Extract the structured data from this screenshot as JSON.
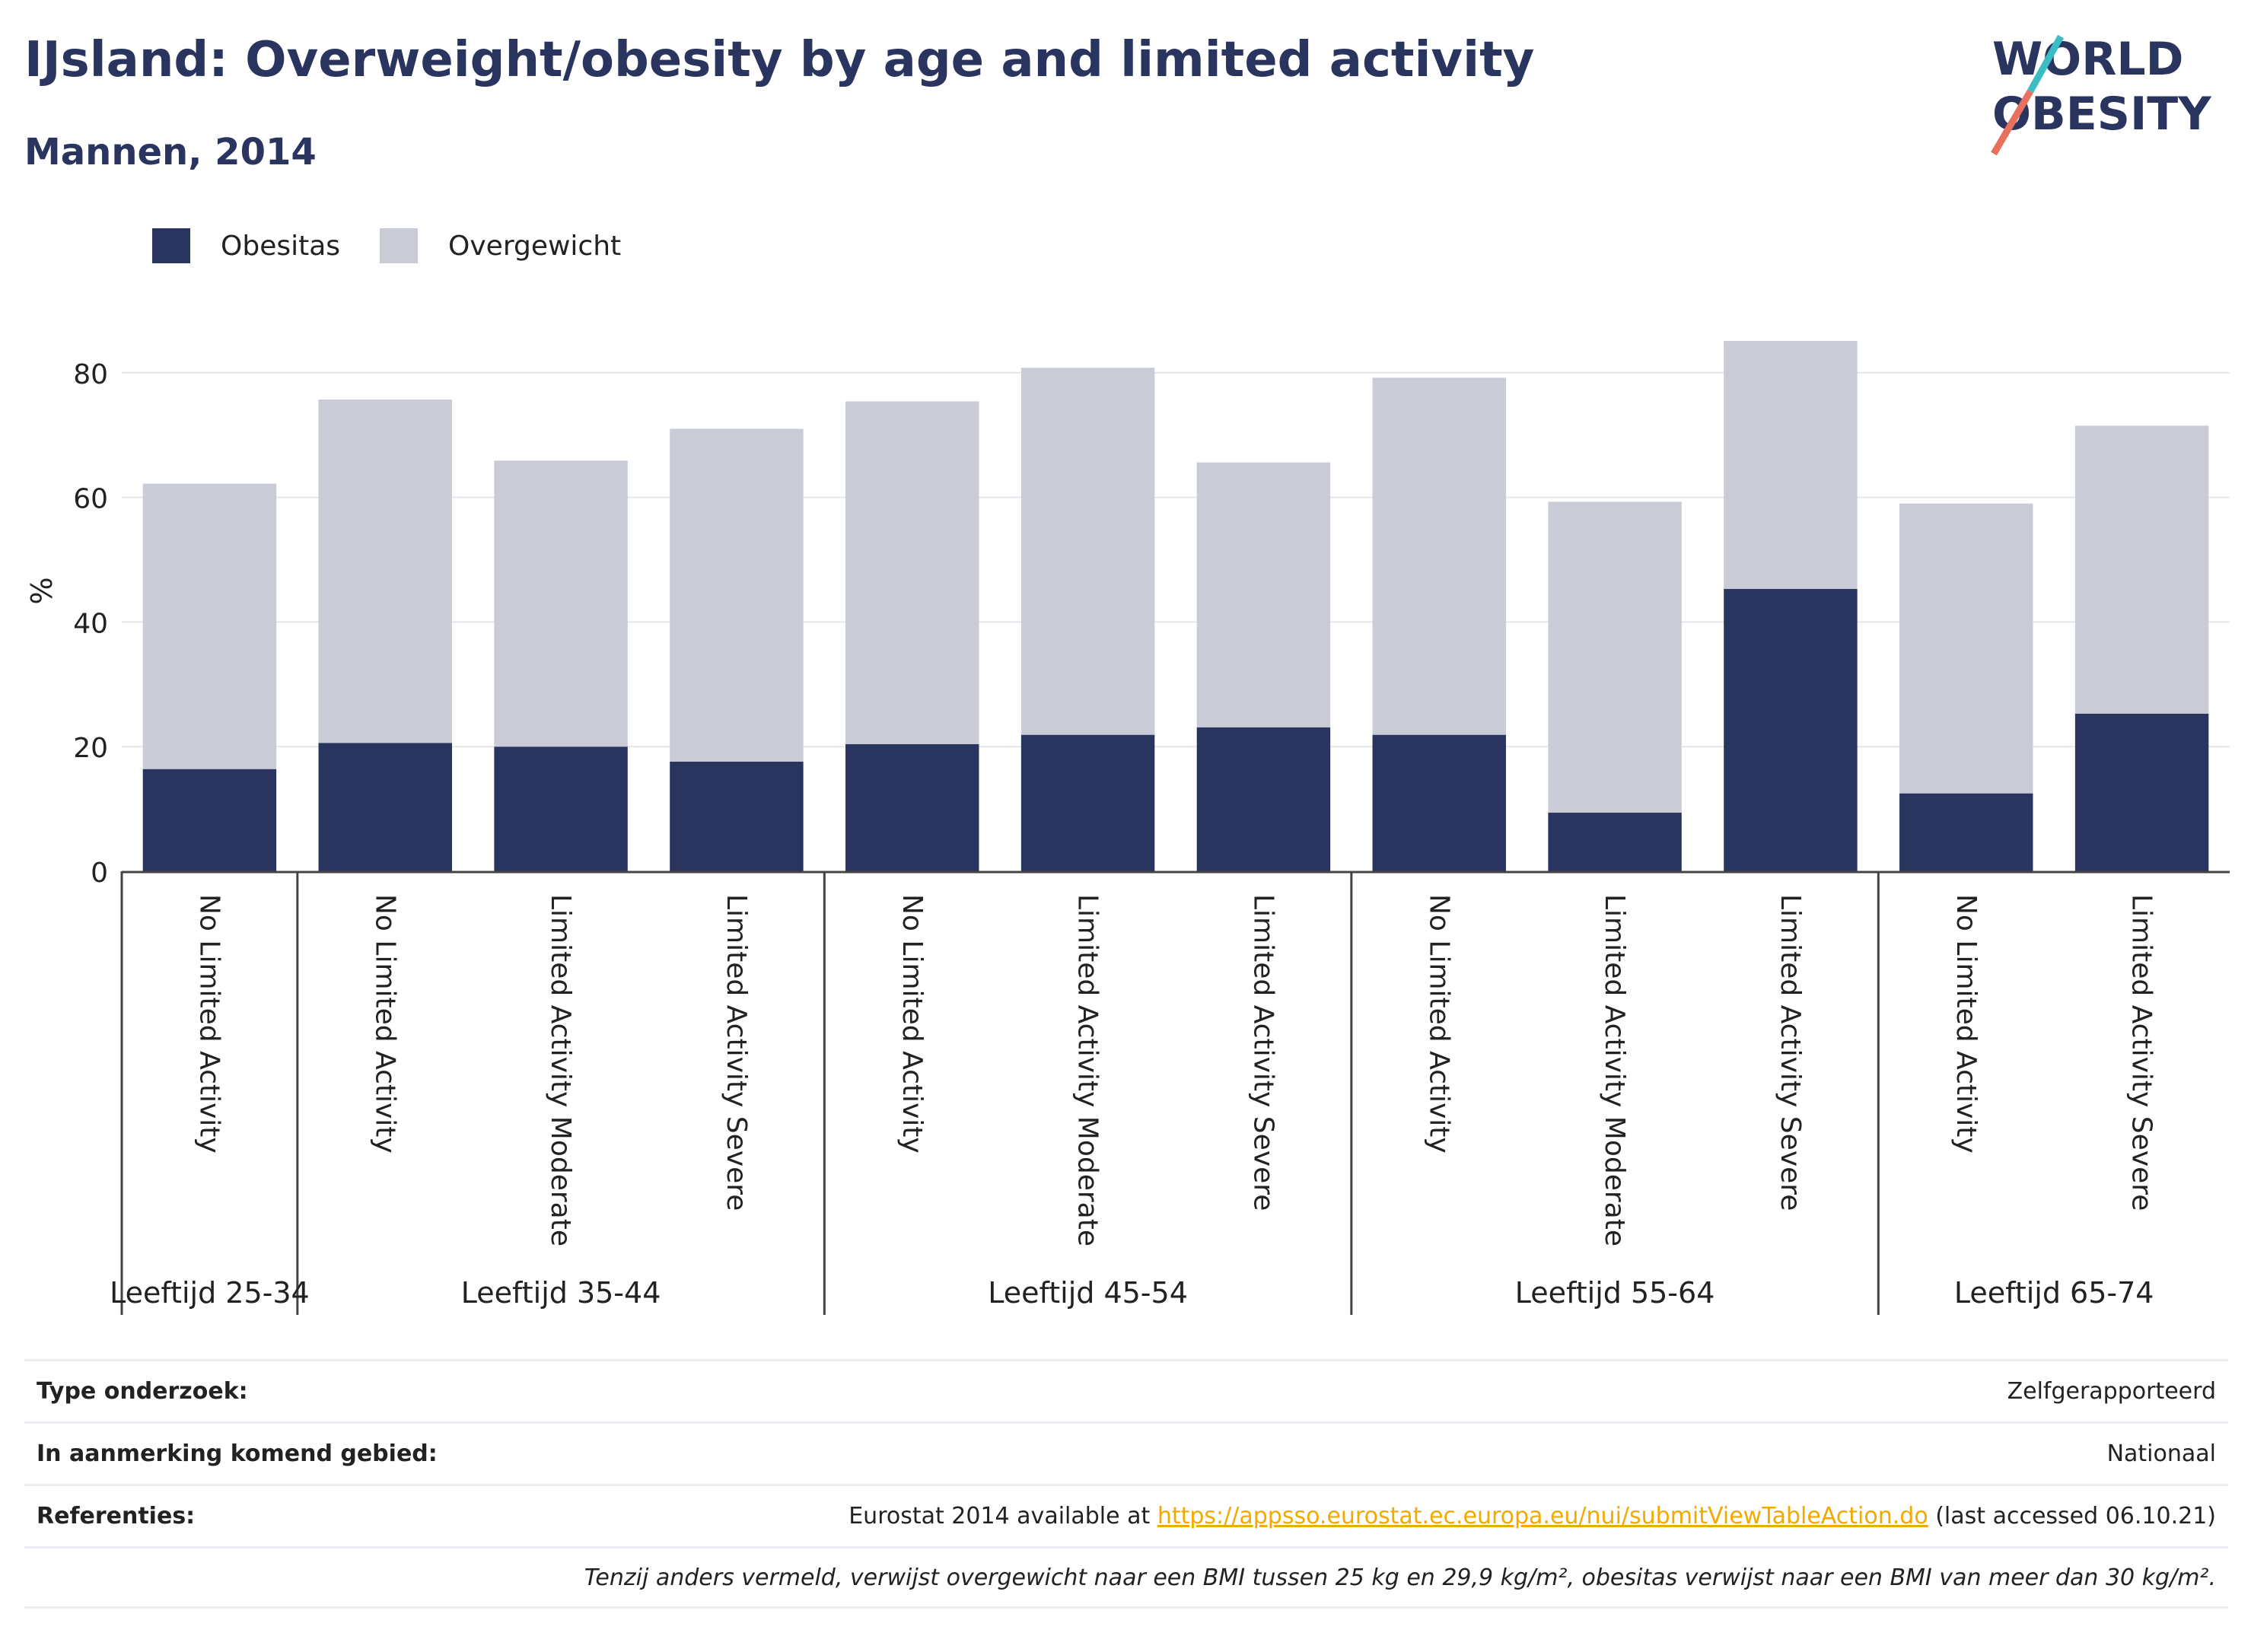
{
  "header": {
    "title": "IJsland: Overweight/obesity by age and limited activity",
    "subtitle": "Mannen, 2014"
  },
  "logo": {
    "text": "WORLD OBESITY",
    "accent_colors": [
      "#e8705f",
      "#3cbdc4"
    ]
  },
  "legend": [
    {
      "label": "Obesitas",
      "color": "#29355f"
    },
    {
      "label": "Overgewicht",
      "color": "#c9cbd7"
    }
  ],
  "chart_data": {
    "type": "bar",
    "stacked": true,
    "ylabel": "%",
    "ylim": [
      0,
      90
    ],
    "yticks": [
      0,
      20,
      40,
      60,
      80
    ],
    "grid": true,
    "legend_position": "top-left",
    "categories": [
      "No Limited Activity",
      "No Limited Activity",
      "Limited Activity Moderate",
      "Limited Activity Severe",
      "No Limited Activity",
      "Limited Activity Moderate",
      "Limited Activity Severe",
      "No Limited Activity",
      "Limited Activity Moderate",
      "Limited Activity Severe",
      "No Limited Activity",
      "Limited Activity Severe"
    ],
    "groups": [
      {
        "label": "Leeftijd 25-34",
        "count": 1
      },
      {
        "label": "Leeftijd 35-44",
        "count": 3
      },
      {
        "label": "Leeftijd 45-54",
        "count": 3
      },
      {
        "label": "Leeftijd 55-64",
        "count": 3
      },
      {
        "label": "Leeftijd 65-74",
        "count": 2
      }
    ],
    "series": [
      {
        "name": "Obesitas",
        "color": "#29355f",
        "values": [
          16.4,
          20.6,
          20.0,
          17.6,
          20.4,
          21.9,
          23.1,
          21.9,
          9.4,
          45.3,
          12.5,
          25.3
        ]
      },
      {
        "name": "Overgewicht",
        "color": "#c9cbd7",
        "values": [
          45.8,
          55.1,
          45.9,
          53.4,
          55.0,
          58.9,
          42.5,
          57.3,
          49.9,
          39.8,
          46.5,
          46.2
        ]
      }
    ]
  },
  "info": {
    "type_label": "Type onderzoek:",
    "type_value": "Zelfgerapporteerd",
    "area_label": "In aanmerking komend gebied:",
    "area_value": "Nationaal",
    "ref_label": "Referenties:",
    "ref_prefix": "Eurostat 2014 available at ",
    "ref_link": "https://appsso.eurostat.ec.europa.eu/nui/submitViewTableAction.do",
    "ref_suffix": " (last accessed 06.10.21)",
    "note": "Tenzij anders vermeld, verwijst overgewicht naar een BMI tussen 25 kg en 29,9 kg/m², obesitas verwijst naar een BMI van meer dan 30 kg/m²."
  }
}
